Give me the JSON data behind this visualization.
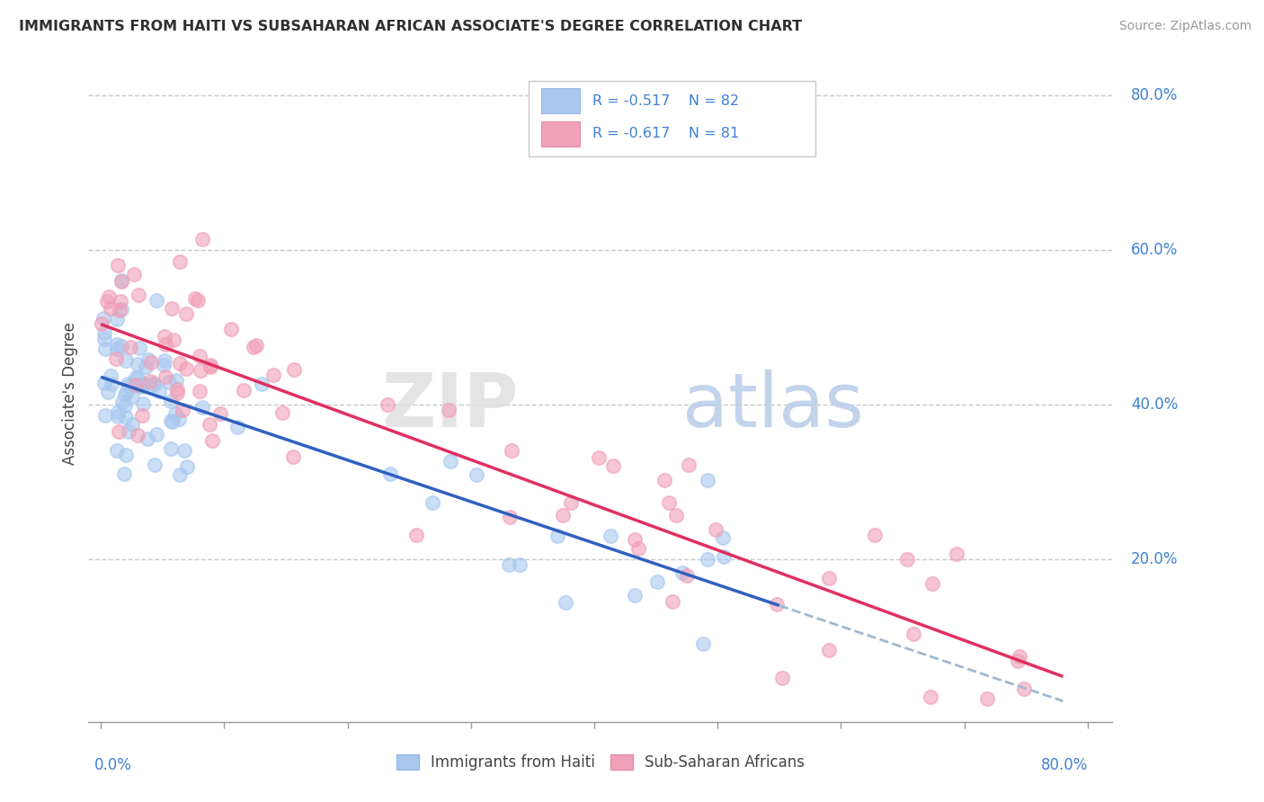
{
  "title": "IMMIGRANTS FROM HAITI VS SUBSAHARAN AFRICAN ASSOCIATE'S DEGREE CORRELATION CHART",
  "source": "Source: ZipAtlas.com",
  "ylabel": "Associate's Degree",
  "legend_label1": "Immigrants from Haiti",
  "legend_label2": "Sub-Saharan Africans",
  "r1": -0.517,
  "n1": 82,
  "r2": -0.617,
  "n2": 81,
  "color_haiti": "#a8c8f0",
  "color_subsaharan": "#f0a0b8",
  "color_haiti_line": "#3060c0",
  "color_subsaharan_line": "#e03060",
  "color_dashed_line": "#a0b8d0",
  "axis_color": "#4080d0",
  "background_color": "#ffffff",
  "grid_color": "#c8c8c8",
  "title_color": "#303030",
  "watermark_zip_color": "#e8e8e8",
  "watermark_atlas_color": "#c8d8f0"
}
